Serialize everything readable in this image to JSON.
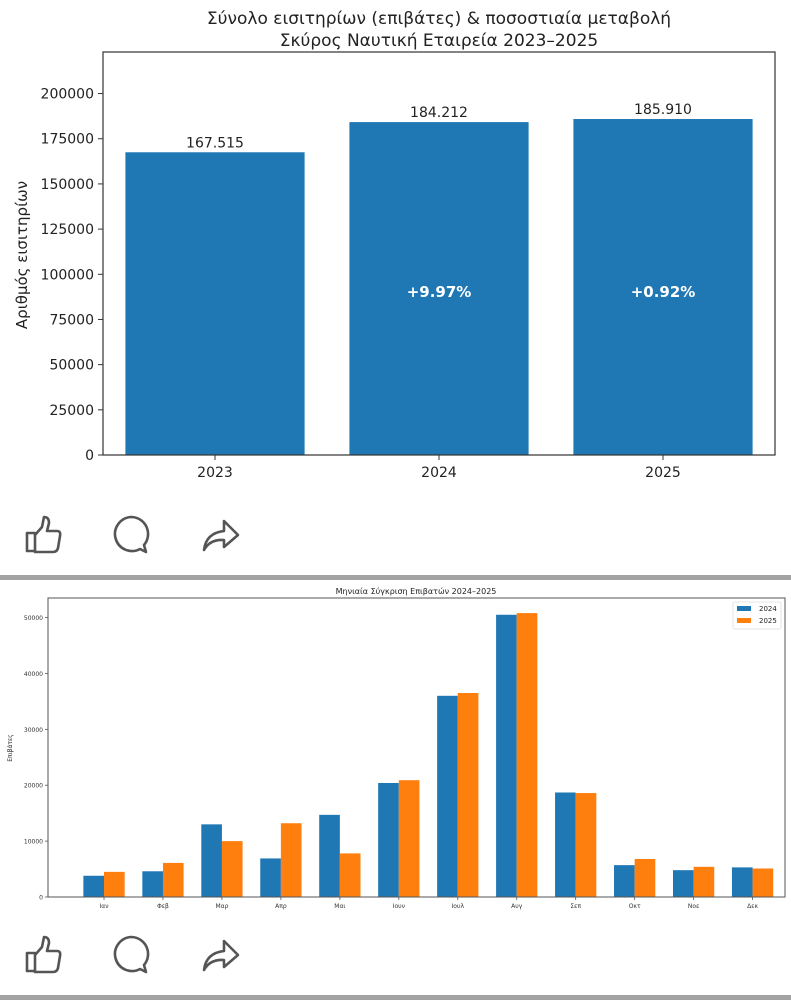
{
  "posts": [
    {
      "actions": [
        {
          "name": "like",
          "icon": "thumbs-up-icon"
        },
        {
          "name": "comment",
          "icon": "speech-bubble-icon"
        },
        {
          "name": "share",
          "icon": "share-arrow-icon"
        }
      ]
    },
    {
      "actions": [
        {
          "name": "like",
          "icon": "thumbs-up-icon"
        },
        {
          "name": "comment",
          "icon": "speech-bubble-icon"
        },
        {
          "name": "share",
          "icon": "share-arrow-icon"
        }
      ]
    }
  ],
  "colors": {
    "series_2024": "#1f77b4",
    "series_2025": "#ff7f0e",
    "divider": "#a3a3a3",
    "icon": "#555555"
  },
  "chart_data": [
    {
      "type": "bar",
      "title": "Σύνολο εισιτηρίων (επιβάτες) & ποσοστιαία μεταβολή",
      "subtitle": "Σκύρος Ναυτική Εταιρεία 2023–2025",
      "xlabel": "",
      "ylabel": "Αριθμός εισιτηρίων",
      "categories": [
        "2023",
        "2024",
        "2025"
      ],
      "values": [
        167515,
        184212,
        185910
      ],
      "value_labels": [
        "167.515",
        "184.212",
        "185.910"
      ],
      "change_labels": [
        "",
        "+9.97%",
        "+0.92%"
      ],
      "ylim": [
        0,
        223000
      ],
      "yticks": [
        0,
        25000,
        50000,
        75000,
        100000,
        125000,
        150000,
        175000,
        200000
      ],
      "ytick_labels": [
        "0",
        "25000",
        "50000",
        "75000",
        "100000",
        "125000",
        "150000",
        "175000",
        "200000"
      ],
      "grid": false,
      "color": "#1f77b4"
    },
    {
      "type": "bar",
      "title": "Μηνιαία Σύγκριση Επιβατών 2024–2025",
      "xlabel": "",
      "ylabel": "Επιβάτες",
      "categories": [
        "Ιαν",
        "Φεβ",
        "Μαρ",
        "Απρ",
        "Μαι",
        "Ιουν",
        "Ιουλ",
        "Αυγ",
        "Σεπ",
        "Οκτ",
        "Νοε",
        "Δεκ"
      ],
      "series": [
        {
          "name": "2024",
          "color": "#1f77b4",
          "values": [
            3800,
            4600,
            13000,
            6900,
            14700,
            20400,
            36000,
            50500,
            18700,
            5700,
            4800,
            5300
          ]
        },
        {
          "name": "2025",
          "color": "#ff7f0e",
          "values": [
            4500,
            6100,
            10000,
            13200,
            7800,
            20900,
            36500,
            50800,
            18600,
            6800,
            5400,
            5100
          ]
        }
      ],
      "ylim": [
        0,
        53500
      ],
      "yticks": [
        0,
        10000,
        20000,
        30000,
        40000,
        50000
      ],
      "ytick_labels": [
        "0",
        "10000",
        "20000",
        "30000",
        "40000",
        "50000"
      ],
      "legend": {
        "position": "top-right",
        "entries": [
          "2024",
          "2025"
        ]
      },
      "grid": false
    }
  ]
}
